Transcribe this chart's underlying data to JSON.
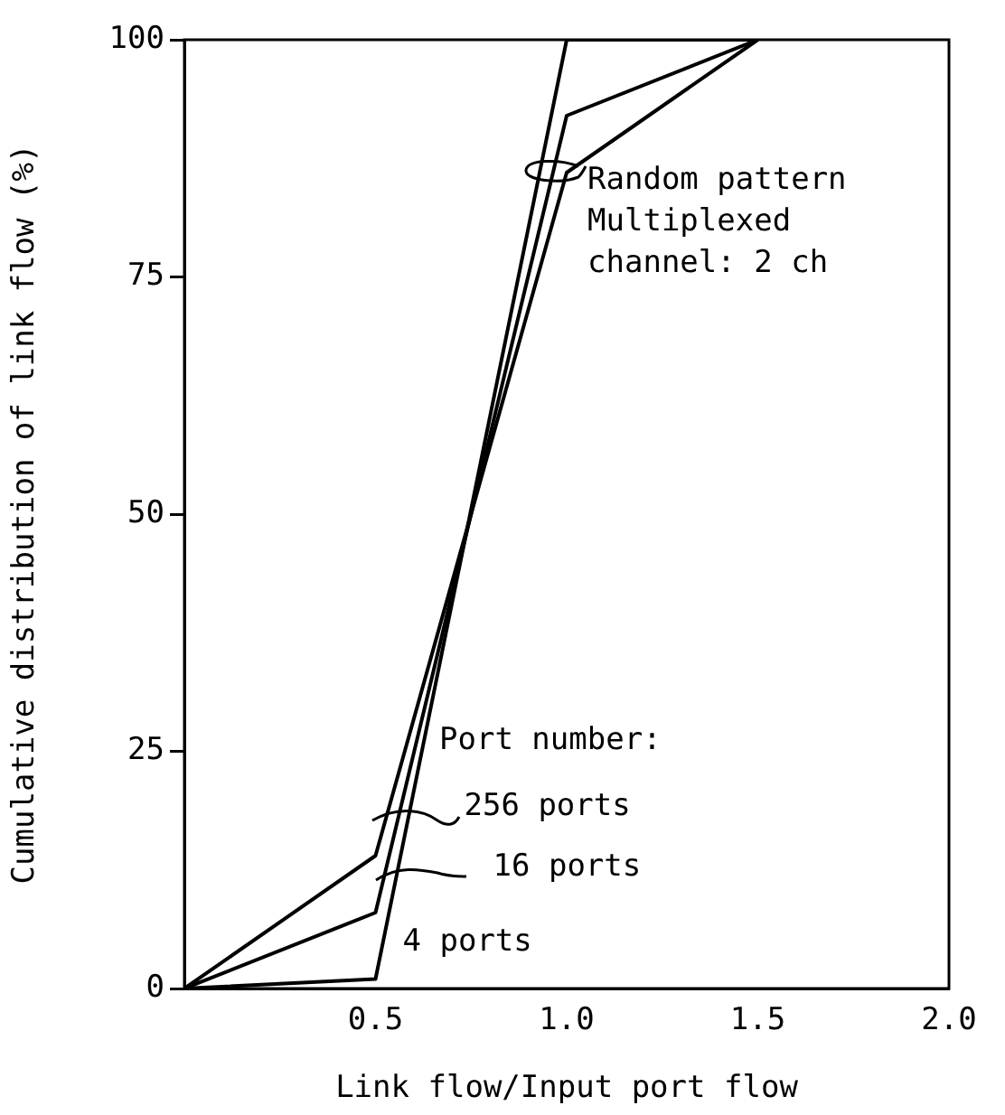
{
  "chart_data": {
    "type": "line",
    "xlabel": "Link flow/Input port flow",
    "ylabel": "Cumulative distribution of link flow (%)",
    "xlim": [
      0,
      2
    ],
    "xticks": [
      0.5,
      {
        "value": 1,
        "label": "1.0"
      },
      1.5,
      {
        "value": 2,
        "label": "2.0"
      }
    ],
    "ylim": [
      0,
      100
    ],
    "yticks": [
      0,
      25,
      50,
      75,
      100
    ],
    "grid": false,
    "legend": "bottom",
    "marker": "none",
    "line_style": "solid",
    "series": [
      {
        "name": "256 ports",
        "color": "#000000",
        "x": [
          0,
          0.5,
          1.0,
          1.5
        ],
        "values": [
          0,
          14,
          86,
          100
        ]
      },
      {
        "name": "16 ports",
        "color": "#000000",
        "x": [
          0,
          0.5,
          1.0,
          1.5
        ],
        "values": [
          0,
          8,
          92,
          100
        ]
      },
      {
        "name": "4 ports",
        "color": "#000000",
        "x": [
          0,
          0.5,
          1.0,
          1.5
        ],
        "values": [
          0,
          1,
          100,
          100
        ]
      }
    ],
    "annotations": [
      "Random pattern\nMultiplexed\nchannel: 2 ch",
      "Port number:"
    ]
  }
}
